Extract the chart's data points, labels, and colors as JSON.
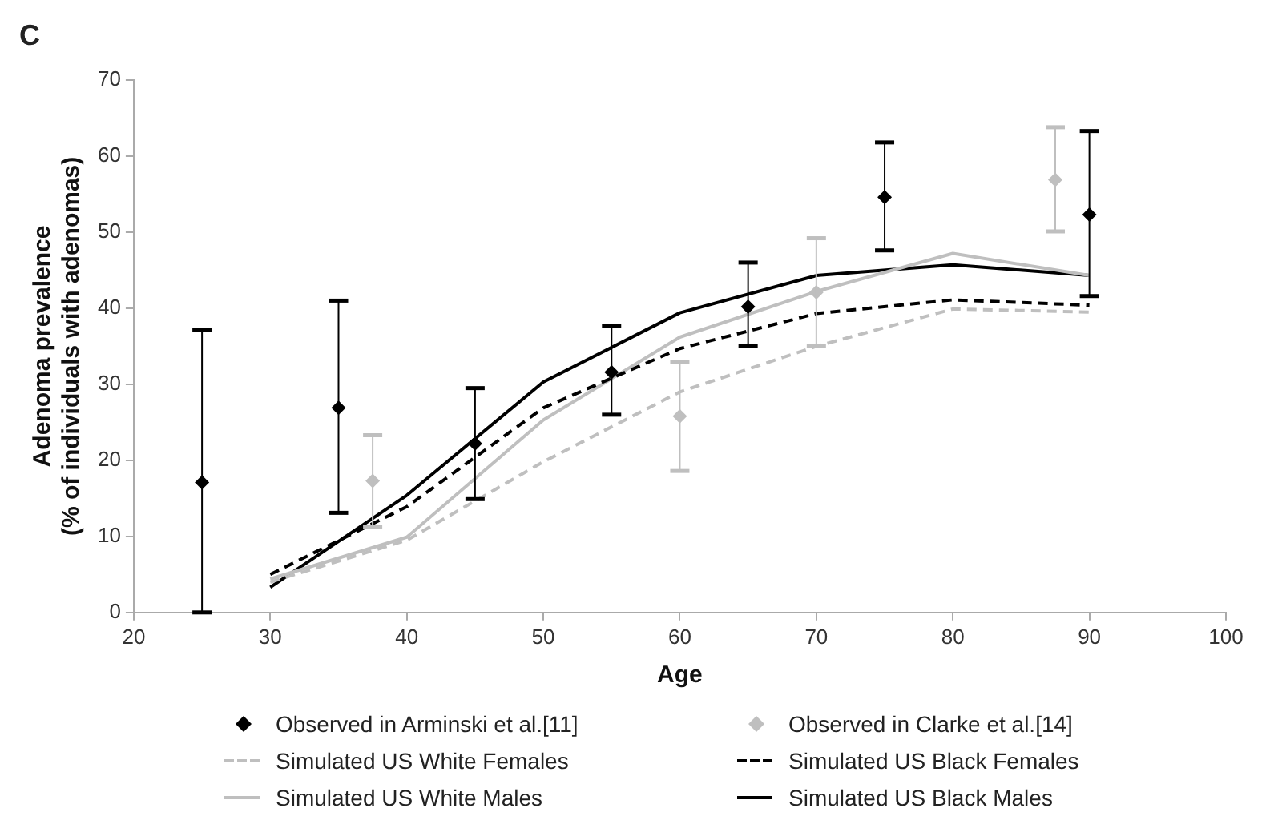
{
  "chart_data": {
    "type": "scatter",
    "annotations": [
      "C"
    ],
    "xlabel": "Age",
    "ylabel": "Adenoma prevalence\n(% of individuals with adenomas)",
    "xlim": [
      20,
      100
    ],
    "xticks": [
      20,
      30,
      40,
      50,
      60,
      70,
      80,
      90,
      100
    ],
    "ylim": [
      0,
      70
    ],
    "yticks": [
      0,
      10,
      20,
      30,
      40,
      50,
      60,
      70
    ],
    "grid": false,
    "legend": "bottom",
    "series": [
      {
        "name": "Observed in Arminski et al.[11]",
        "type": "scatter",
        "marker": "diamond",
        "color": "#000000",
        "x": [
          25,
          35,
          45,
          55,
          65,
          75,
          90
        ],
        "values": [
          17.1,
          26.9,
          22.2,
          31.6,
          40.2,
          54.6,
          52.3
        ],
        "errors": [
          [
            0,
            37.1
          ],
          [
            13.1,
            41.0
          ],
          [
            14.9,
            29.5
          ],
          [
            26.0,
            37.7
          ],
          [
            35.0,
            46.0
          ],
          [
            47.6,
            61.8
          ],
          [
            41.6,
            63.3
          ]
        ]
      },
      {
        "name": "Observed in Clarke et al.[14]",
        "type": "scatter",
        "marker": "diamond",
        "color": "#bfbfbf",
        "x": [
          37.5,
          60,
          70,
          87.5
        ],
        "values": [
          17.3,
          25.8,
          42.1,
          56.9
        ],
        "errors": [
          [
            11.2,
            23.3
          ],
          [
            18.6,
            32.9
          ],
          [
            35.0,
            49.2
          ],
          [
            50.1,
            63.8
          ]
        ]
      },
      {
        "name": "Simulated US White Females",
        "type": "line",
        "marker": "none",
        "line_style": "dashed",
        "color": "#bfbfbf",
        "x": [
          30,
          40,
          50,
          60,
          70,
          80,
          90
        ],
        "values": [
          4.0,
          9.5,
          19.8,
          29.0,
          35.0,
          39.9,
          39.5
        ]
      },
      {
        "name": "Simulated US Black Females",
        "type": "line",
        "marker": "none",
        "line_style": "dashed",
        "color": "#000000",
        "x": [
          30,
          40,
          50,
          60,
          70,
          80,
          90
        ],
        "values": [
          5.0,
          13.9,
          26.9,
          34.7,
          39.3,
          41.1,
          40.4
        ]
      },
      {
        "name": "Simulated US White Males",
        "type": "line",
        "marker": "none",
        "line_style": "solid",
        "color": "#bfbfbf",
        "x": [
          30,
          40,
          50,
          60,
          70,
          80,
          90
        ],
        "values": [
          4.4,
          9.9,
          25.3,
          36.2,
          42.2,
          47.2,
          44.3
        ]
      },
      {
        "name": "Simulated US Black Males",
        "type": "line",
        "marker": "none",
        "line_style": "solid",
        "color": "#000000",
        "x": [
          30,
          40,
          50,
          60,
          70,
          80,
          90
        ],
        "values": [
          3.3,
          15.4,
          30.3,
          39.4,
          44.3,
          45.7,
          44.3
        ]
      }
    ]
  }
}
